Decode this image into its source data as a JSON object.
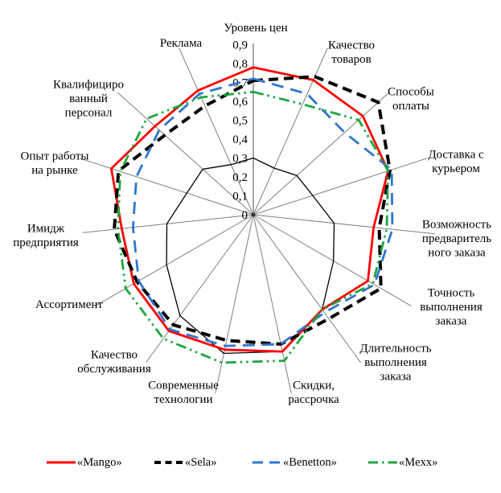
{
  "chart_data": {
    "type": "radar",
    "title": "",
    "axis_count": 15,
    "axis_range": [
      0,
      0.9
    ],
    "tick_labels": [
      "0",
      "0,1",
      "0,2",
      "0,3",
      "0,4",
      "0,5",
      "0,6",
      "0,7",
      "0,8",
      "0,9"
    ],
    "grid": "radial-spokes-only, no rings",
    "legend_position": "bottom",
    "categories": [
      {
        "lines": [
          "Уровень цен"
        ]
      },
      {
        "lines": [
          "Качество",
          "товаров"
        ]
      },
      {
        "lines": [
          "Способы",
          "оплаты"
        ]
      },
      {
        "lines": [
          "Доставка с",
          "курьером"
        ]
      },
      {
        "lines": [
          "Возможность",
          "предваритель",
          "ного заказа"
        ]
      },
      {
        "lines": [
          "Точность",
          "выполнения",
          "заказа"
        ]
      },
      {
        "lines": [
          "Длительность",
          "выполнения",
          "заказа"
        ]
      },
      {
        "lines": [
          "Скидки,",
          "рассрочка"
        ]
      },
      {
        "lines": [
          "Современные",
          "технологии"
        ]
      },
      {
        "lines": [
          "Качество",
          "обслуживания"
        ]
      },
      {
        "lines": [
          "Ассортимент"
        ]
      },
      {
        "lines": [
          "Имидж",
          "предприятия"
        ]
      },
      {
        "lines": [
          "Опыт работы",
          "на рынке"
        ]
      },
      {
        "lines": [
          "Квалифициро",
          "ванный",
          "персонал"
        ]
      },
      {
        "lines": [
          "Реклама"
        ]
      }
    ],
    "series": [
      {
        "name": "«Mango»",
        "color": "#FF0000",
        "line_style": "solid",
        "width": 2.8,
        "in_legend": true,
        "values": [
          0.78,
          0.78,
          0.78,
          0.75,
          0.64,
          0.7,
          0.62,
          0.74,
          0.73,
          0.76,
          0.73,
          0.7,
          0.79,
          0.7,
          0.72
        ]
      },
      {
        "name": "«Sela»",
        "color": "#000000",
        "line_style": "dash",
        "width": 4,
        "in_legend": true,
        "values": [
          0.71,
          0.8,
          0.89,
          0.76,
          0.67,
          0.78,
          0.68,
          0.7,
          0.68,
          0.72,
          0.71,
          0.74,
          0.75,
          0.63,
          0.63
        ]
      },
      {
        "name": "«Benetton»",
        "color": "#2E75CE",
        "line_style": "long-dash",
        "width": 2.8,
        "in_legend": true,
        "values": [
          0.72,
          0.7,
          0.65,
          0.77,
          0.74,
          0.74,
          0.64,
          0.7,
          0.71,
          0.75,
          0.7,
          0.64,
          0.65,
          0.67,
          0.7
        ]
      },
      {
        "name": "«Mexx»",
        "color": "#1DA63F",
        "line_style": "dash-dot-dot",
        "width": 2.8,
        "in_legend": true,
        "values": [
          0.65,
          0.64,
          0.75,
          0.75,
          0.71,
          0.73,
          0.62,
          0.79,
          0.8,
          0.81,
          0.78,
          0.72,
          0.74,
          0.76,
          0.68
        ]
      },
      {
        "name": "",
        "color": "#000000",
        "line_style": "solid",
        "width": 1.3,
        "in_legend": false,
        "values": [
          0.3,
          0.27,
          0.31,
          0.33,
          0.43,
          0.49,
          0.62,
          0.74,
          0.75,
          0.66,
          0.53,
          0.46,
          0.37,
          0.36,
          0.29
        ]
      }
    ]
  }
}
